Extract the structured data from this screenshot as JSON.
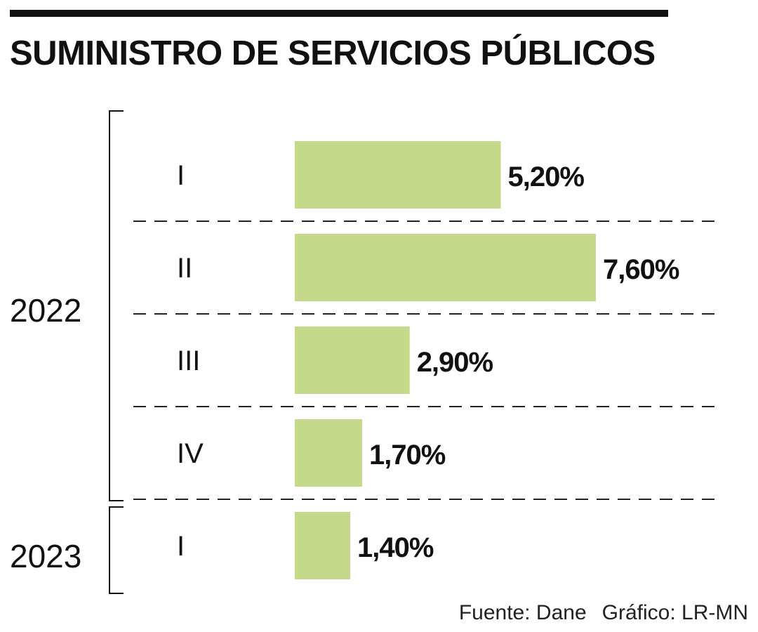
{
  "title": "SUMINISTRO DE SERVICIOS PÚBLICOS",
  "source": "Fuente: Dane",
  "credit": "Gráfico: LR-MN",
  "colors": {
    "bar": "#c5d98a",
    "text": "#111111",
    "divider": "#222222"
  },
  "chart_data": {
    "type": "bar",
    "orientation": "horizontal",
    "title": "SUMINISTRO DE SERVICIOS PÚBLICOS",
    "groups": [
      {
        "label": "2022",
        "categories": [
          "I",
          "II",
          "III",
          "IV"
        ]
      },
      {
        "label": "2023",
        "categories": [
          "I"
        ]
      }
    ],
    "categories": [
      "I",
      "II",
      "III",
      "IV",
      "I"
    ],
    "values": [
      5.2,
      7.6,
      2.9,
      1.7,
      1.4
    ],
    "value_labels": [
      "5,20%",
      "7,60%",
      "2,90%",
      "1,70%",
      "1,40%"
    ],
    "unit": "%",
    "xlim": [
      0,
      7.6
    ],
    "grid": false,
    "legend": "none"
  }
}
